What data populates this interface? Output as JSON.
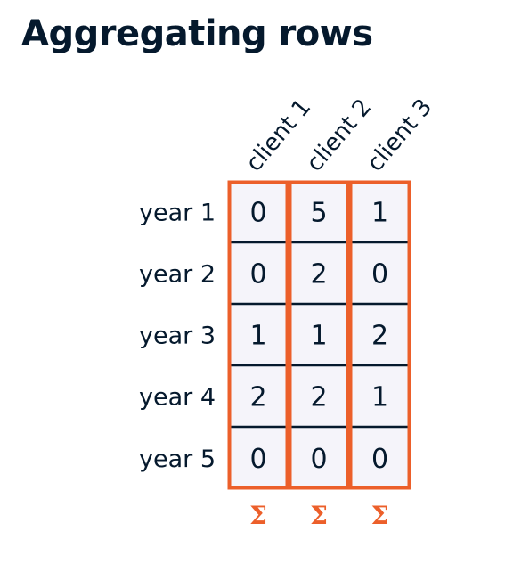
{
  "title": "Aggregating rows",
  "columns": [
    "client 1",
    "client 2",
    "client 3"
  ],
  "rows": [
    "year 1",
    "year 2",
    "year 3",
    "year 4",
    "year 5"
  ],
  "values": [
    [
      0,
      5,
      1
    ],
    [
      0,
      2,
      0
    ],
    [
      1,
      1,
      2
    ],
    [
      2,
      2,
      1
    ],
    [
      0,
      0,
      0
    ]
  ],
  "sum_symbol": "Σ",
  "colors": {
    "text": "#05192d",
    "cell_fill": "#f5f4fa",
    "grid_line": "#05192d",
    "highlight": "#ec5f2a"
  }
}
